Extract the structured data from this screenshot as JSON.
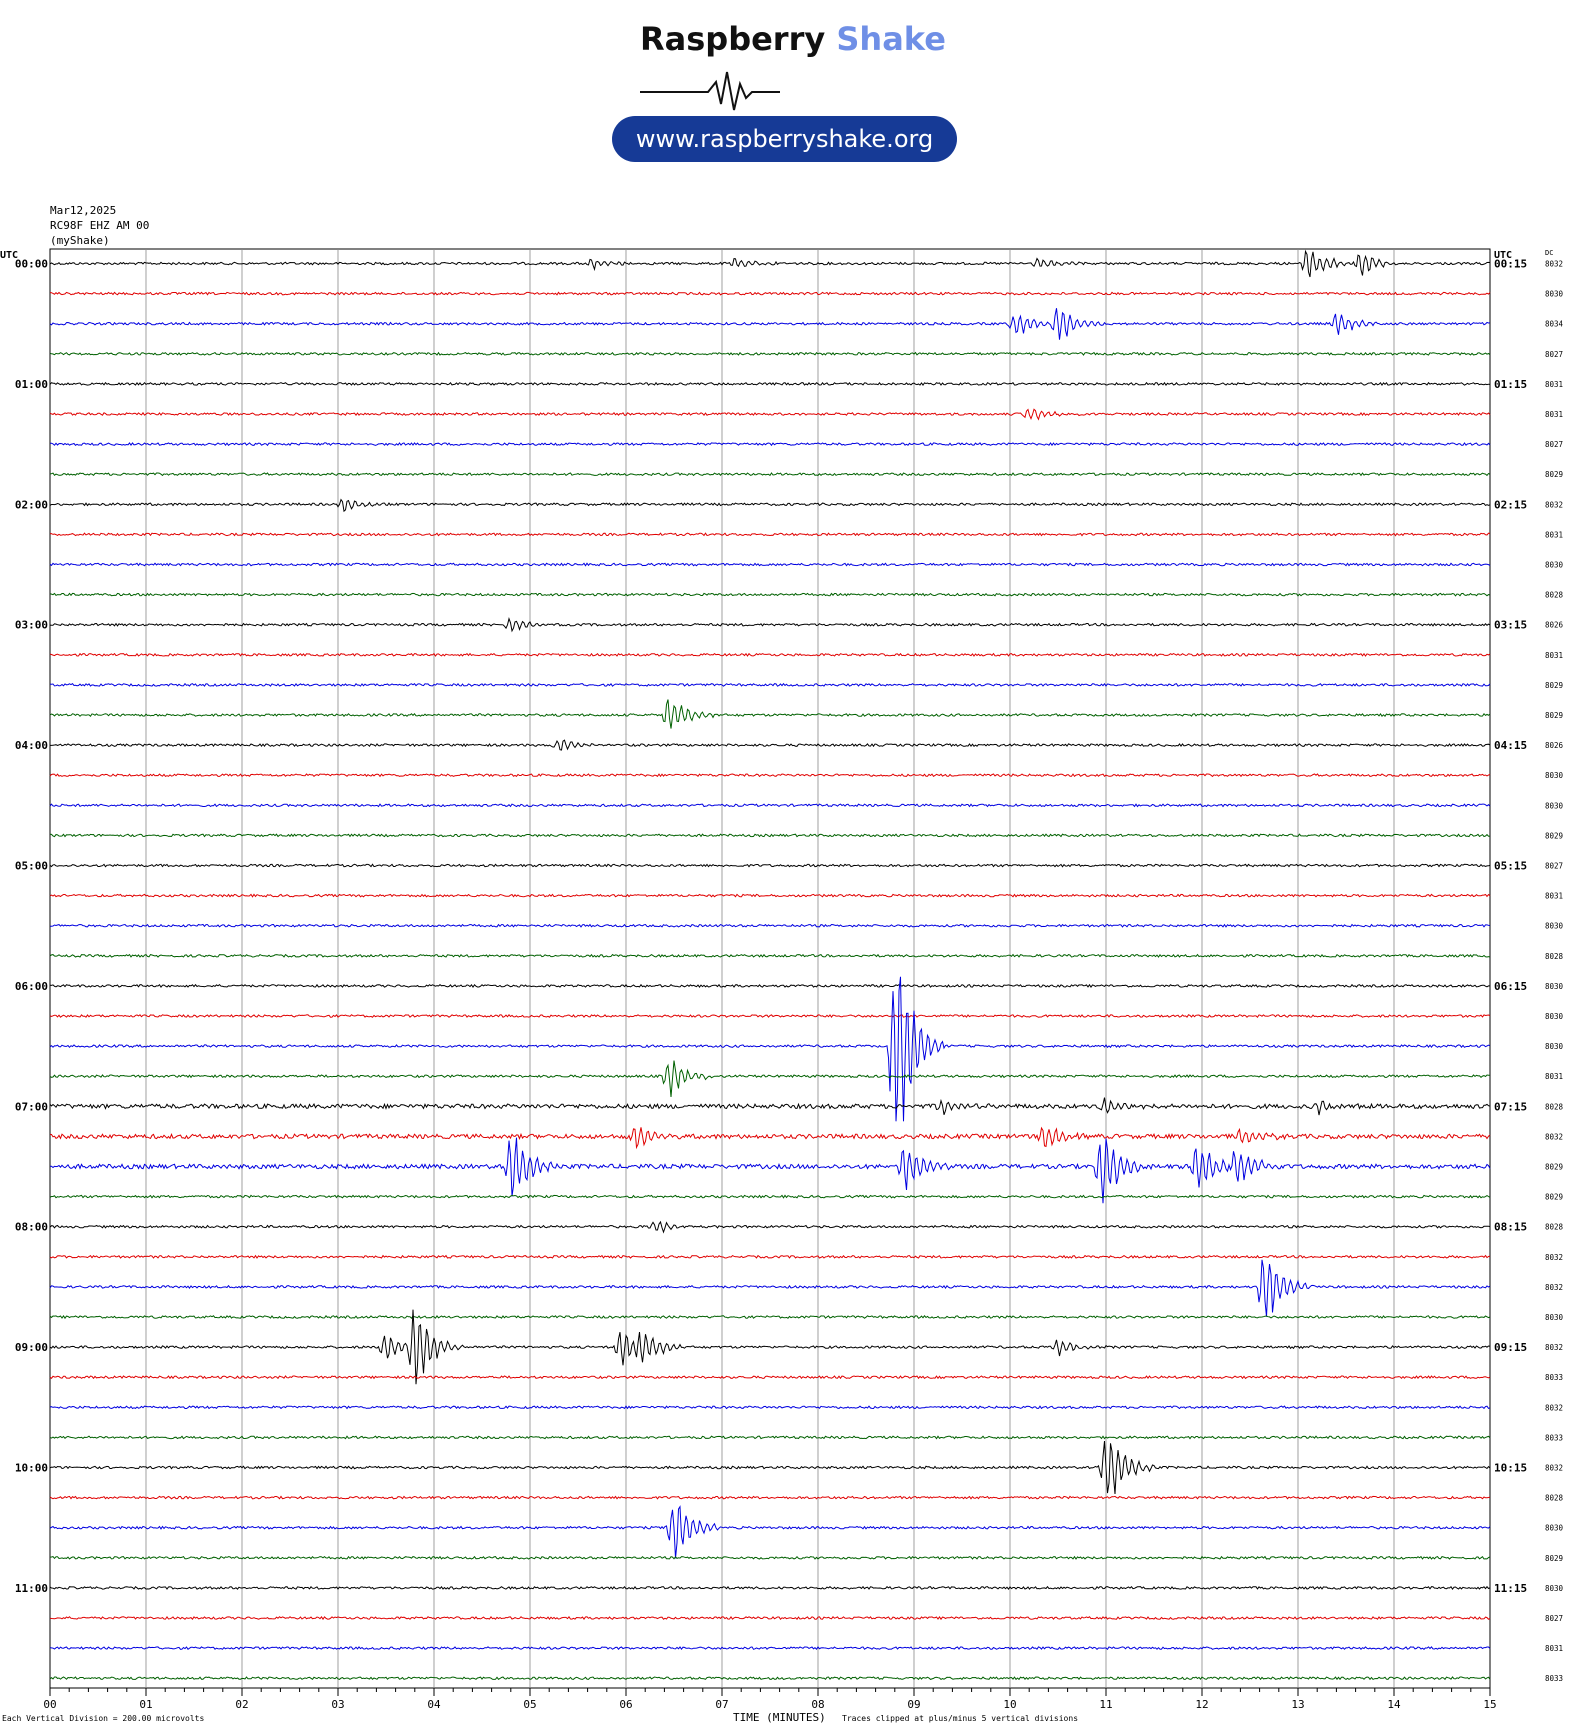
{
  "logo": {
    "brand_part1": "Raspberry",
    "brand_part2": "Shake",
    "url": "www.raspberryshake.org",
    "brand_color": "#6f8fe6",
    "pill_color": "#163a96"
  },
  "header": {
    "date": "Mar12,2025",
    "station": "RC98F EHZ AM 00",
    "source": "(myShake)"
  },
  "footer": {
    "scale_note": "Each Vertical Division =  200.00 microvolts",
    "axis_title": "TIME (MINUTES)",
    "clip_note": "Traces clipped at plus/minus 5 vertical divisions"
  },
  "chart_data": {
    "type": "line",
    "title": "",
    "xlabel": "TIME (MINUTES)",
    "ylabel": "UTC",
    "xlim": [
      0,
      15
    ],
    "x_ticks": [
      "00",
      "01",
      "02",
      "03",
      "04",
      "05",
      "06",
      "07",
      "08",
      "09",
      "10",
      "11",
      "12",
      "13",
      "14",
      "15"
    ],
    "left_axis_label": "UTC",
    "right_axis_label": "UTC",
    "dc_label": "DC",
    "row_labels_left": [
      "00:00",
      "01:00",
      "02:00",
      "03:00",
      "04:00",
      "05:00",
      "06:00",
      "07:00",
      "08:00",
      "09:00",
      "10:00",
      "11:00"
    ],
    "row_labels_right": [
      "00:15",
      "01:15",
      "02:15",
      "03:15",
      "04:15",
      "05:15",
      "06:15",
      "07:15",
      "08:15",
      "09:15",
      "10:15",
      "11:15"
    ],
    "dc_values": [
      "8032",
      "8030",
      "8034",
      "8027",
      "8031",
      "8031",
      "8027",
      "8029",
      "8032",
      "8031",
      "8030",
      "8028",
      "8026",
      "8031",
      "8029",
      "8029",
      "8026",
      "8030",
      "8030",
      "8029",
      "8027",
      "8031",
      "8030",
      "8028",
      "8030",
      "8030",
      "8030",
      "8031",
      "8028",
      "8032",
      "8029",
      "8029",
      "8028",
      "8032",
      "8032",
      "8030",
      "8032",
      "8033",
      "8032",
      "8033",
      "8032",
      "8028",
      "8030",
      "8029",
      "8030",
      "8027",
      "8031",
      "8033"
    ],
    "trace_colors": [
      "#000000",
      "#e00000",
      "#0000e0",
      "#006000"
    ],
    "grid": true,
    "events": [
      {
        "row": 0,
        "minute": 5.65,
        "amp": 0.3
      },
      {
        "row": 0,
        "minute": 7.15,
        "amp": 0.25
      },
      {
        "row": 0,
        "minute": 10.3,
        "amp": 0.25
      },
      {
        "row": 0,
        "minute": 13.1,
        "amp": 0.8
      },
      {
        "row": 0,
        "minute": 13.65,
        "amp": 0.6
      },
      {
        "row": 2,
        "minute": 10.05,
        "amp": 0.55
      },
      {
        "row": 2,
        "minute": 10.5,
        "amp": 0.9
      },
      {
        "row": 2,
        "minute": 13.4,
        "amp": 0.55
      },
      {
        "row": 5,
        "minute": 10.2,
        "amp": 0.35
      },
      {
        "row": 8,
        "minute": 3.05,
        "amp": 0.3
      },
      {
        "row": 12,
        "minute": 4.8,
        "amp": 0.3
      },
      {
        "row": 15,
        "minute": 6.45,
        "amp": 0.9
      },
      {
        "row": 16,
        "minute": 5.3,
        "amp": 0.35
      },
      {
        "row": 26,
        "minute": 8.8,
        "amp": 5.0
      },
      {
        "row": 27,
        "minute": 6.45,
        "amp": 0.9
      },
      {
        "row": 28,
        "minute": 9.3,
        "amp": 0.4
      },
      {
        "row": 28,
        "minute": 11.0,
        "amp": 0.35
      },
      {
        "row": 28,
        "minute": 13.2,
        "amp": 0.3
      },
      {
        "row": 29,
        "minute": 6.1,
        "amp": 0.6
      },
      {
        "row": 29,
        "minute": 10.35,
        "amp": 0.6
      },
      {
        "row": 29,
        "minute": 12.4,
        "amp": 0.5
      },
      {
        "row": 30,
        "minute": 4.8,
        "amp": 1.6
      },
      {
        "row": 30,
        "minute": 8.9,
        "amp": 1.2
      },
      {
        "row": 30,
        "minute": 10.95,
        "amp": 1.7
      },
      {
        "row": 30,
        "minute": 11.95,
        "amp": 1.2
      },
      {
        "row": 30,
        "minute": 12.35,
        "amp": 0.9
      },
      {
        "row": 32,
        "minute": 6.3,
        "amp": 0.3
      },
      {
        "row": 34,
        "minute": 12.65,
        "amp": 1.9
      },
      {
        "row": 36,
        "minute": 3.5,
        "amp": 0.7
      },
      {
        "row": 36,
        "minute": 3.8,
        "amp": 1.8
      },
      {
        "row": 36,
        "minute": 5.95,
        "amp": 0.8
      },
      {
        "row": 36,
        "minute": 6.15,
        "amp": 0.9
      },
      {
        "row": 36,
        "minute": 10.5,
        "amp": 0.35
      },
      {
        "row": 40,
        "minute": 11.0,
        "amp": 1.8
      },
      {
        "row": 42,
        "minute": 6.5,
        "amp": 1.6
      }
    ]
  }
}
